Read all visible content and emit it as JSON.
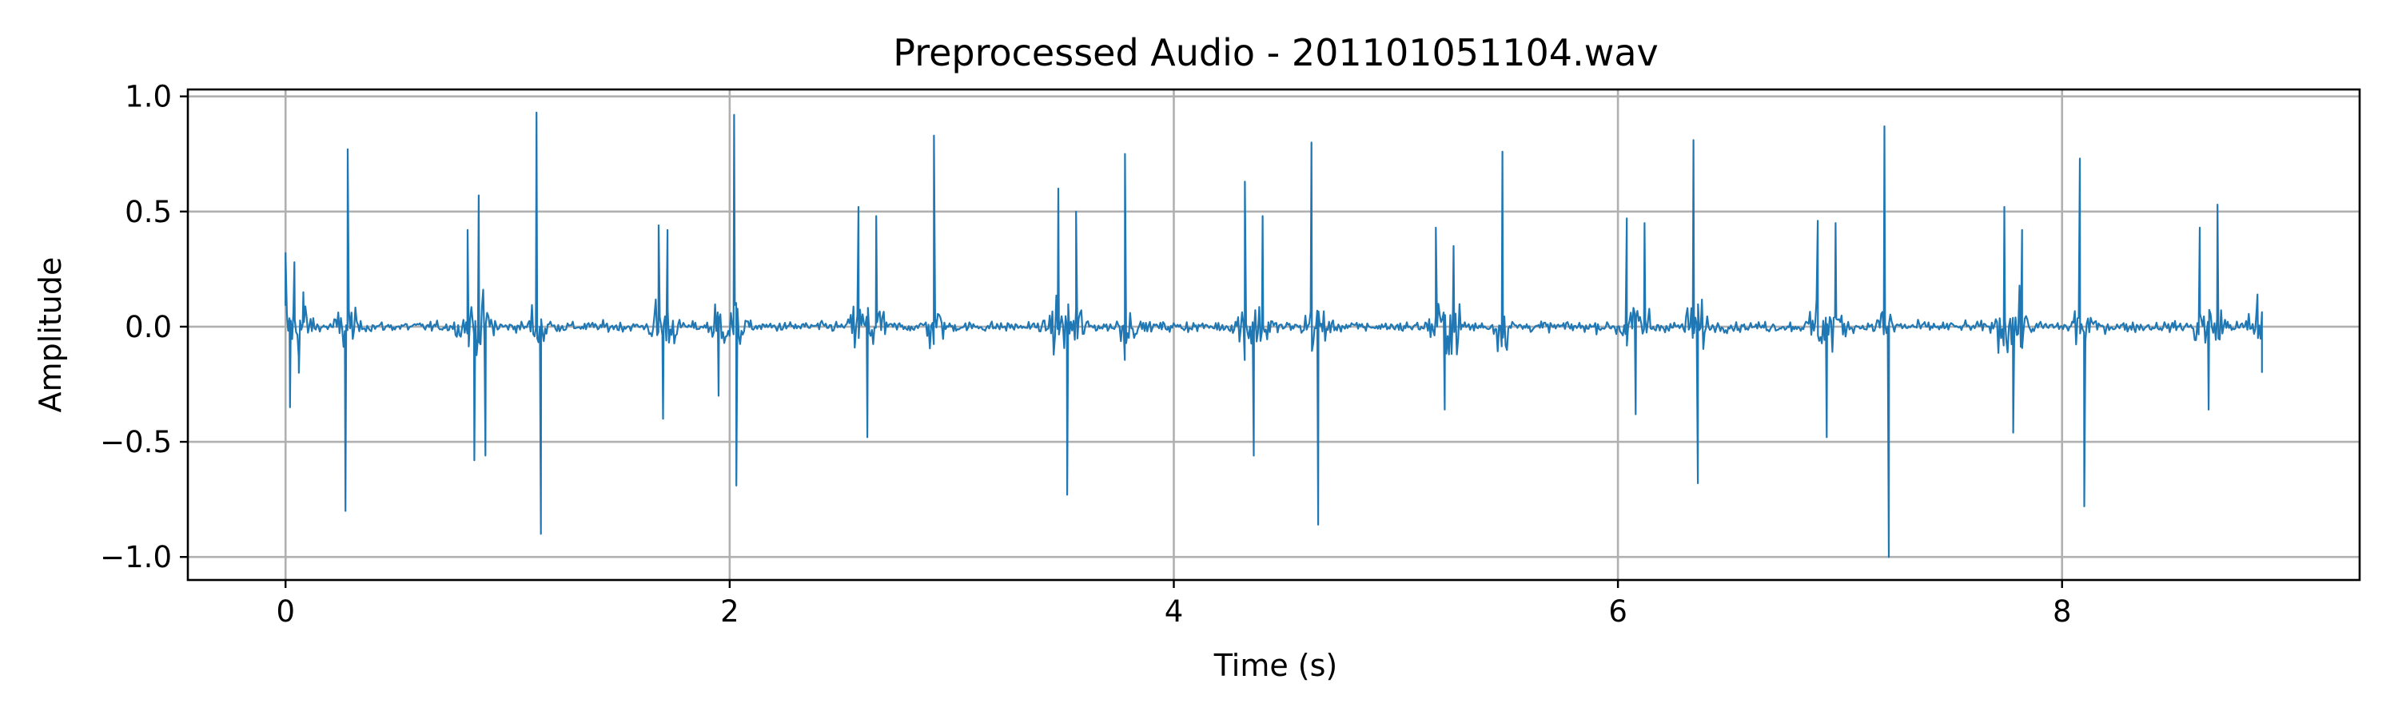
{
  "chart_data": {
    "type": "line",
    "title": "Preprocessed Audio - 201101051104.wav",
    "xlabel": "Time (s)",
    "ylabel": "Amplitude",
    "xlim": [
      -0.44,
      9.34
    ],
    "ylim": [
      -1.1,
      1.03
    ],
    "xticks": [
      0,
      2,
      4,
      6,
      8
    ],
    "xtick_labels": [
      "0",
      "2",
      "4",
      "6",
      "8"
    ],
    "yticks": [
      1.0,
      0.5,
      0.0,
      -0.5,
      -1.0
    ],
    "ytick_labels": [
      "1.0",
      "0.5",
      "0.0",
      "−0.5",
      "−1.0"
    ],
    "grid": true,
    "color": "#1f77b4",
    "duration_s": 8.9,
    "series": [
      {
        "x": [
          0.0,
          0.02,
          0.04,
          0.06,
          0.08,
          0.28,
          0.27,
          0.82,
          0.85,
          0.87,
          0.9,
          1.13,
          1.15,
          1.68,
          1.7,
          1.72,
          1.95,
          2.02,
          2.03,
          2.58,
          2.62,
          2.66,
          2.92,
          3.48,
          3.52,
          3.56,
          3.78,
          4.32,
          4.36,
          4.4,
          4.62,
          4.65,
          5.18,
          5.22,
          5.26,
          5.48,
          6.04,
          6.08,
          6.12,
          6.34,
          6.36,
          6.9,
          6.94,
          6.98,
          7.2,
          7.22,
          7.74,
          7.78,
          7.82,
          8.08,
          8.1,
          8.62,
          8.66,
          8.7,
          8.88,
          8.9
        ],
        "y": [
          0.32,
          -0.35,
          0.28,
          -0.2,
          0.15,
          0.77,
          -0.8,
          0.42,
          -0.58,
          0.57,
          -0.56,
          0.93,
          -0.9,
          0.44,
          -0.4,
          0.42,
          -0.3,
          0.92,
          -0.69,
          0.52,
          -0.48,
          0.48,
          0.83,
          0.6,
          -0.73,
          0.5,
          0.75,
          0.63,
          -0.56,
          0.48,
          0.8,
          -0.86,
          0.43,
          -0.36,
          0.35,
          0.76,
          0.47,
          -0.38,
          0.45,
          0.81,
          -0.68,
          0.46,
          -0.48,
          0.45,
          0.87,
          -1.0,
          0.52,
          -0.46,
          0.42,
          0.73,
          -0.78,
          0.43,
          -0.36,
          0.53,
          0.14,
          -0.2
        ]
      }
    ]
  }
}
